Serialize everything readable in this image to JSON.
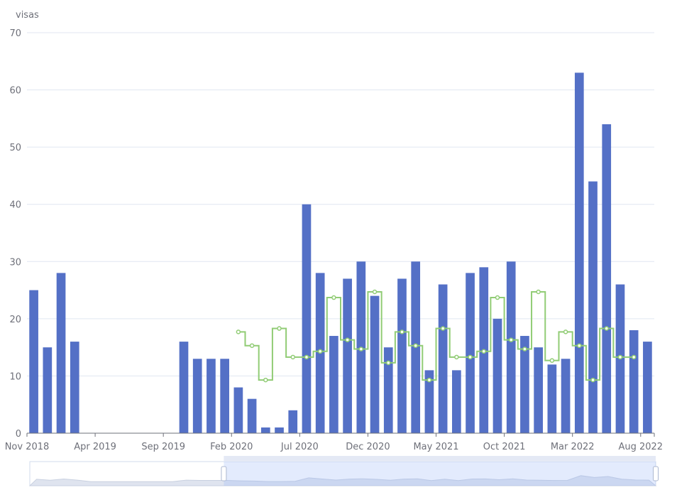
{
  "chart_data": {
    "type": "bar",
    "ylabel": "visas",
    "ylim": [
      0,
      70
    ],
    "yticks": [
      0,
      10,
      20,
      30,
      40,
      50,
      60,
      70
    ],
    "xtick_labels": [
      "Nov 2018",
      "Apr 2019",
      "Sep 2019",
      "Feb 2020",
      "Jul 2020",
      "Dec 2020",
      "May 2021",
      "Oct 2021",
      "Mar 2022",
      "Aug 2022"
    ],
    "x": [
      "2018-11",
      "2018-12",
      "2019-01",
      "2019-02",
      "2019-03",
      "2019-04",
      "2019-05",
      "2019-06",
      "2019-07",
      "2019-08",
      "2019-09",
      "2019-10",
      "2019-11",
      "2019-12",
      "2020-01",
      "2020-02",
      "2020-03",
      "2020-04",
      "2020-05",
      "2020-06",
      "2020-07",
      "2020-08",
      "2020-09",
      "2020-10",
      "2020-11",
      "2020-12",
      "2021-01",
      "2021-02",
      "2021-03",
      "2021-04",
      "2021-05",
      "2021-06",
      "2021-07",
      "2021-08",
      "2021-09",
      "2021-10",
      "2021-11",
      "2021-12",
      "2022-01",
      "2022-02",
      "2022-03",
      "2022-04",
      "2022-05",
      "2022-06",
      "2022-07",
      "2022-08"
    ],
    "series": [
      {
        "type": "bar",
        "color": "#5470c6",
        "values": [
          25,
          15,
          28,
          16,
          0,
          0,
          0,
          0,
          0,
          0,
          0,
          16,
          13,
          13,
          13,
          8,
          6,
          1,
          1,
          4,
          40,
          28,
          17,
          27,
          30,
          24,
          15,
          27,
          30,
          11,
          26,
          11,
          28,
          29,
          20,
          30,
          17,
          15,
          12,
          13,
          63,
          44,
          54,
          26,
          18,
          16
        ]
      },
      {
        "type": "step-line",
        "color": "#91cc75",
        "values": [
          null,
          null,
          null,
          null,
          null,
          null,
          null,
          null,
          null,
          null,
          null,
          null,
          null,
          null,
          null,
          17.7,
          15.3,
          9.3,
          18.3,
          13.3,
          13.3,
          14.3,
          23.7,
          16.3,
          14.7,
          24.7,
          12.3,
          17.7,
          15.3,
          9.3,
          18.3,
          13.3,
          13.3,
          14.3,
          23.7,
          16.3,
          14.7,
          24.7,
          12.7,
          17.7,
          15.3,
          9.3,
          18.3,
          13.3,
          13.3,
          null
        ]
      }
    ],
    "grid": true,
    "data_zoom": {
      "start": 0.31,
      "end": 1.0
    }
  }
}
